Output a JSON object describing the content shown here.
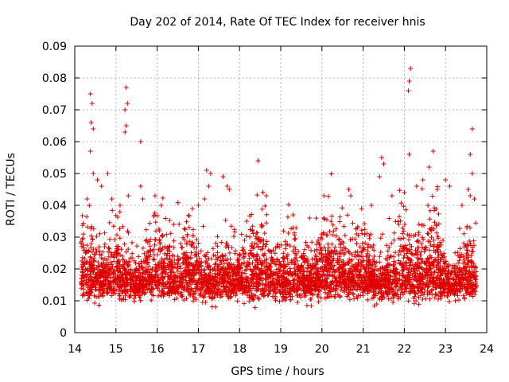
{
  "chart_data": {
    "type": "scatter",
    "title": "Day 202 of 2014, Rate Of TEC Index for receiver hnis",
    "xlabel": "GPS time / hours",
    "ylabel": "ROTI / TECUs",
    "xlim": [
      14,
      24
    ],
    "ylim": [
      0,
      0.09
    ],
    "xticks": [
      14,
      15,
      16,
      17,
      18,
      19,
      20,
      21,
      22,
      23,
      24
    ],
    "yticks": [
      0,
      0.01,
      0.02,
      0.03,
      0.04,
      0.05,
      0.06,
      0.07,
      0.08,
      0.09
    ],
    "xtick_labels": [
      "14",
      "15",
      "16",
      "17",
      "18",
      "19",
      "20",
      "21",
      "22",
      "23",
      "24"
    ],
    "ytick_labels": [
      "0",
      "0.01",
      "0.02",
      "0.03",
      "0.04",
      "0.05",
      "0.06",
      "0.07",
      "0.08",
      "0.09"
    ],
    "grid": true,
    "marker": "plus",
    "color": "#e00000",
    "x_range": [
      14.15,
      23.75
    ],
    "series": [
      {
        "name": "ROTI",
        "points": [
          [
            14.38,
            0.075
          ],
          [
            14.42,
            0.072
          ],
          [
            14.4,
            0.066
          ],
          [
            14.45,
            0.064
          ],
          [
            14.38,
            0.057
          ],
          [
            14.45,
            0.05
          ],
          [
            14.55,
            0.048
          ],
          [
            14.65,
            0.046
          ],
          [
            14.8,
            0.05
          ],
          [
            14.3,
            0.042
          ],
          [
            15.25,
            0.077
          ],
          [
            15.28,
            0.072
          ],
          [
            15.22,
            0.07
          ],
          [
            15.25,
            0.065
          ],
          [
            15.22,
            0.063
          ],
          [
            15.6,
            0.06
          ],
          [
            15.3,
            0.043
          ],
          [
            15.6,
            0.046
          ],
          [
            15.65,
            0.042
          ],
          [
            15.95,
            0.043
          ],
          [
            15.1,
            0.04
          ],
          [
            16.1,
            0.04
          ],
          [
            14.9,
            0.042
          ],
          [
            17.2,
            0.051
          ],
          [
            17.3,
            0.05
          ],
          [
            17.25,
            0.046
          ],
          [
            17.6,
            0.049
          ],
          [
            17.7,
            0.046
          ],
          [
            17.75,
            0.045
          ],
          [
            17.0,
            0.04
          ],
          [
            17.15,
            0.042
          ],
          [
            18.45,
            0.054
          ],
          [
            18.65,
            0.043
          ],
          [
            19.3,
            0.037
          ],
          [
            19.7,
            0.036
          ],
          [
            20.05,
            0.043
          ],
          [
            20.65,
            0.045
          ],
          [
            20.7,
            0.043
          ],
          [
            21.2,
            0.04
          ],
          [
            21.45,
            0.055
          ],
          [
            21.5,
            0.053
          ],
          [
            21.4,
            0.049
          ],
          [
            21.7,
            0.043
          ],
          [
            22.15,
            0.083
          ],
          [
            22.12,
            0.079
          ],
          [
            22.1,
            0.076
          ],
          [
            22.12,
            0.056
          ],
          [
            22.0,
            0.044
          ],
          [
            22.3,
            0.046
          ],
          [
            22.45,
            0.048
          ],
          [
            22.7,
            0.057
          ],
          [
            22.6,
            0.052
          ],
          [
            22.8,
            0.045
          ],
          [
            23.0,
            0.048
          ],
          [
            23.1,
            0.046
          ],
          [
            23.65,
            0.064
          ],
          [
            23.6,
            0.056
          ],
          [
            23.65,
            0.05
          ],
          [
            23.55,
            0.045
          ],
          [
            23.7,
            0.042
          ],
          [
            23.6,
            0.043
          ],
          [
            23.4,
            0.04
          ]
        ]
      }
    ]
  }
}
